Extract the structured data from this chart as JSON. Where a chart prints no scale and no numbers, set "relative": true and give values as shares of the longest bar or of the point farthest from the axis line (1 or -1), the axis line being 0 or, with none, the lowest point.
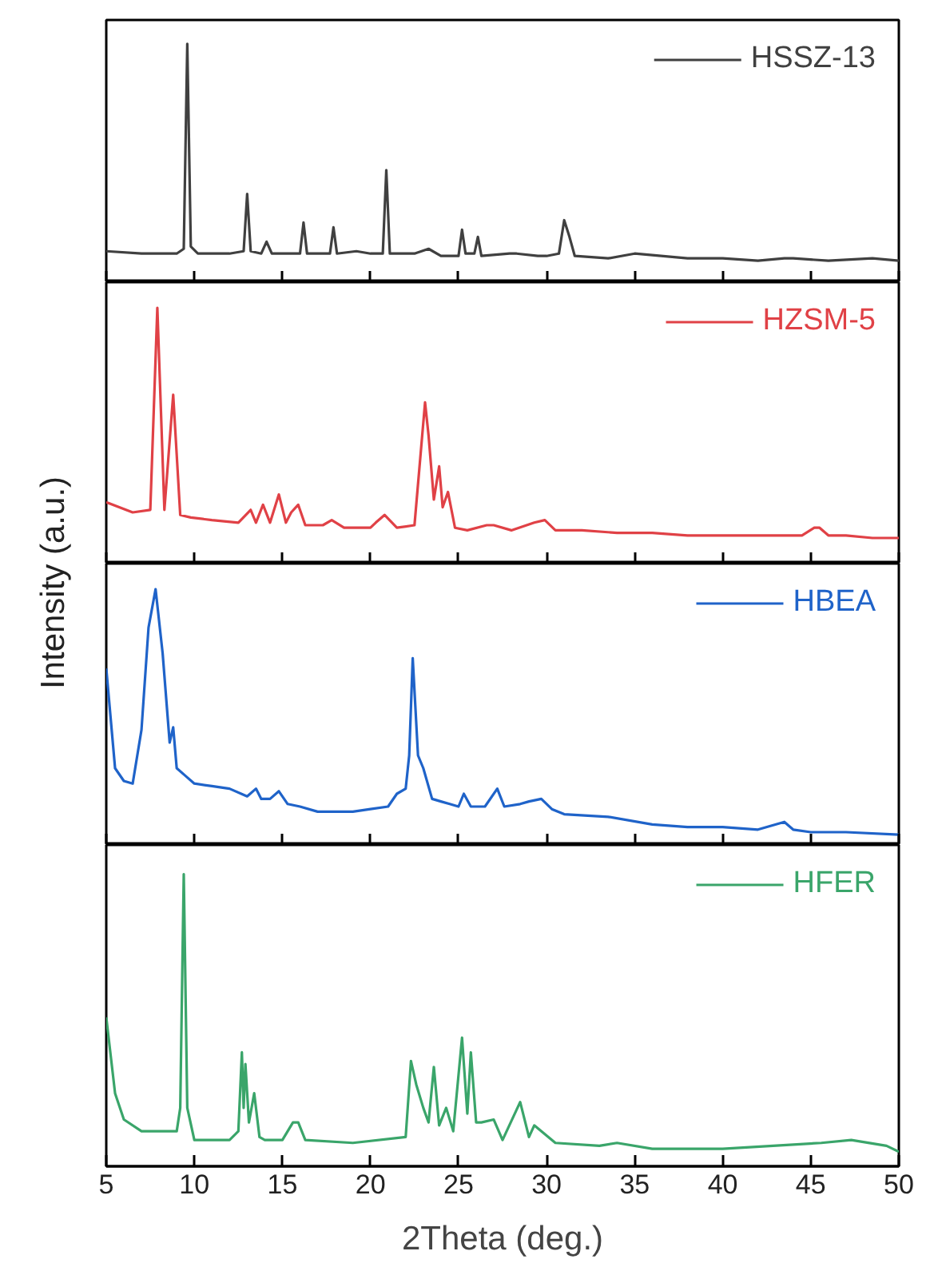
{
  "chart_data": [
    {
      "type": "line",
      "relative": true,
      "ylabel": "Intensity (a.u.)",
      "xlim": [
        5,
        50
      ],
      "xticks": [
        5,
        10,
        15,
        20,
        25,
        30,
        35,
        40,
        45,
        50
      ],
      "tick_labels": false,
      "legend": "top right",
      "series": [
        {
          "name": "HSSZ-13",
          "color": "#404040",
          "x": [
            5,
            7,
            9,
            9.4,
            9.6,
            9.8,
            10.2,
            12,
            12.8,
            13.0,
            13.2,
            13.8,
            14.1,
            14.4,
            16.0,
            16.2,
            16.4,
            17.7,
            17.9,
            18.1,
            19.2,
            20.0,
            20.7,
            20.9,
            21.1,
            22.5,
            23.3,
            24.0,
            25.0,
            25.2,
            25.4,
            25.9,
            26.1,
            26.3,
            27.9,
            28.3,
            29.5,
            30.0,
            30.7,
            31.0,
            31.3,
            31.6,
            33.5,
            35.0,
            36.5,
            38.0,
            40.0,
            42.0,
            43.5,
            44.0,
            46.0,
            48.5,
            50
          ],
          "values": [
            0.13,
            0.12,
            0.12,
            0.14,
            1.0,
            0.15,
            0.12,
            0.12,
            0.13,
            0.37,
            0.13,
            0.12,
            0.17,
            0.12,
            0.12,
            0.25,
            0.12,
            0.12,
            0.23,
            0.12,
            0.13,
            0.12,
            0.12,
            0.47,
            0.12,
            0.12,
            0.14,
            0.11,
            0.11,
            0.22,
            0.12,
            0.12,
            0.19,
            0.11,
            0.12,
            0.12,
            0.11,
            0.11,
            0.12,
            0.26,
            0.19,
            0.11,
            0.1,
            0.12,
            0.11,
            0.1,
            0.1,
            0.09,
            0.1,
            0.1,
            0.09,
            0.1,
            0.09
          ]
        }
      ]
    },
    {
      "type": "line",
      "relative": true,
      "xlim": [
        5,
        50
      ],
      "xticks": [
        5,
        10,
        15,
        20,
        25,
        30,
        35,
        40,
        45,
        50
      ],
      "tick_labels": false,
      "legend": "top right",
      "series": [
        {
          "name": "HZSM-5",
          "color": "#e04146",
          "x": [
            5,
            6.5,
            7.5,
            7.9,
            8.3,
            8.8,
            9.2,
            9.8,
            11,
            12.5,
            13.2,
            13.5,
            13.9,
            14.3,
            14.8,
            15.2,
            15.5,
            15.9,
            16.3,
            17.3,
            17.8,
            18.5,
            19.2,
            20.0,
            20.3,
            20.8,
            21.5,
            22.5,
            23.1,
            23.3,
            23.6,
            23.9,
            24.1,
            24.4,
            24.8,
            25.5,
            26.6,
            27.0,
            28.0,
            29.3,
            29.9,
            30.5,
            32,
            34,
            36,
            38,
            40,
            42,
            44.5,
            45.2,
            45.5,
            46,
            47,
            48.5,
            50
          ],
          "values": [
            0.24,
            0.2,
            0.21,
            1.0,
            0.21,
            0.66,
            0.19,
            0.18,
            0.17,
            0.16,
            0.21,
            0.16,
            0.23,
            0.16,
            0.27,
            0.16,
            0.2,
            0.23,
            0.15,
            0.15,
            0.17,
            0.14,
            0.14,
            0.14,
            0.16,
            0.19,
            0.14,
            0.15,
            0.63,
            0.5,
            0.25,
            0.38,
            0.22,
            0.28,
            0.14,
            0.13,
            0.15,
            0.15,
            0.13,
            0.16,
            0.17,
            0.13,
            0.13,
            0.12,
            0.12,
            0.11,
            0.11,
            0.11,
            0.11,
            0.14,
            0.14,
            0.11,
            0.11,
            0.1,
            0.1
          ]
        }
      ]
    },
    {
      "type": "line",
      "relative": true,
      "xlim": [
        5,
        50
      ],
      "xticks": [
        5,
        10,
        15,
        20,
        25,
        30,
        35,
        40,
        45,
        50
      ],
      "tick_labels": false,
      "legend": "top right",
      "series": [
        {
          "name": "HBEA",
          "color": "#1f63c9",
          "x": [
            5,
            5.5,
            6,
            6.5,
            7,
            7.4,
            7.8,
            8.2,
            8.6,
            8.8,
            9.0,
            9.5,
            10,
            11,
            12,
            13,
            13.5,
            13.8,
            14.3,
            14.8,
            15.3,
            16,
            17,
            18,
            19,
            20,
            21,
            21.5,
            22.0,
            22.2,
            22.4,
            22.7,
            23.0,
            23.5,
            24.0,
            24.5,
            25.0,
            25.3,
            25.7,
            26.5,
            27.2,
            27.6,
            28.5,
            29.0,
            29.7,
            30.3,
            31,
            33.5,
            36,
            38,
            40,
            42,
            43.5,
            44,
            45,
            47,
            50
          ],
          "values": [
            0.69,
            0.3,
            0.25,
            0.24,
            0.45,
            0.85,
            1.0,
            0.75,
            0.4,
            0.46,
            0.3,
            0.27,
            0.24,
            0.23,
            0.22,
            0.19,
            0.22,
            0.18,
            0.18,
            0.21,
            0.16,
            0.15,
            0.13,
            0.13,
            0.13,
            0.14,
            0.15,
            0.2,
            0.22,
            0.35,
            0.73,
            0.35,
            0.3,
            0.18,
            0.17,
            0.16,
            0.15,
            0.2,
            0.15,
            0.15,
            0.22,
            0.15,
            0.16,
            0.17,
            0.18,
            0.14,
            0.12,
            0.11,
            0.08,
            0.07,
            0.07,
            0.06,
            0.09,
            0.06,
            0.05,
            0.05,
            0.04
          ]
        }
      ]
    },
    {
      "type": "line",
      "relative": true,
      "xlabel": "2Theta (deg.)",
      "xlim": [
        5,
        50
      ],
      "xticks": [
        5,
        10,
        15,
        20,
        25,
        30,
        35,
        40,
        45,
        50
      ],
      "tick_labels": "x",
      "legend": "top right",
      "series": [
        {
          "name": "HFER",
          "color": "#3aa56a",
          "x": [
            5,
            5.5,
            6,
            7,
            8,
            9,
            9.2,
            9.4,
            9.6,
            10,
            12,
            12.5,
            12.7,
            12.8,
            12.9,
            13.1,
            13.4,
            13.7,
            14,
            15,
            15.6,
            15.9,
            16.3,
            19,
            22,
            22.3,
            22.6,
            23.0,
            23.3,
            23.6,
            23.9,
            24.3,
            24.7,
            25.2,
            25.5,
            25.7,
            26.0,
            26.3,
            27.0,
            27.5,
            28.5,
            29.0,
            29.3,
            30.5,
            33,
            34,
            36,
            40,
            45.6,
            47.3,
            49.3,
            50
          ],
          "values": [
            0.51,
            0.25,
            0.16,
            0.12,
            0.12,
            0.12,
            0.2,
            1.0,
            0.2,
            0.09,
            0.09,
            0.12,
            0.39,
            0.2,
            0.35,
            0.15,
            0.25,
            0.1,
            0.09,
            0.09,
            0.15,
            0.15,
            0.09,
            0.08,
            0.1,
            0.36,
            0.28,
            0.2,
            0.15,
            0.34,
            0.14,
            0.2,
            0.12,
            0.44,
            0.18,
            0.39,
            0.15,
            0.15,
            0.16,
            0.09,
            0.22,
            0.1,
            0.14,
            0.08,
            0.07,
            0.08,
            0.06,
            0.06,
            0.08,
            0.09,
            0.07,
            0.05
          ]
        }
      ]
    }
  ]
}
